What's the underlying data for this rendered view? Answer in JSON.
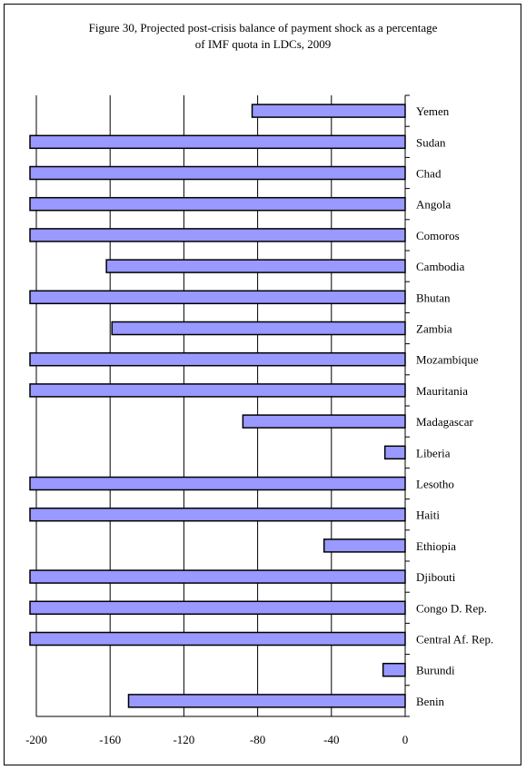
{
  "colors": {
    "bar_fill": "#9999ff",
    "bar_stroke": "#000000",
    "grid": "#000000",
    "background": "#ffffff"
  },
  "chart_data": {
    "type": "bar",
    "orientation": "horizontal",
    "title": "Figure 30,  Projected post-crisis balance of payment shock as a percentage of IMF quota in LDCs, 2009",
    "title_lines": [
      "Figure 30,  Projected post-crisis balance of payment shock as a percentage",
      "of IMF quota in LDCs, 2009"
    ],
    "xlabel": "",
    "ylabel": "",
    "xlim": [
      -200,
      0
    ],
    "x_ticks": [
      -200,
      -160,
      -120,
      -80,
      -40,
      0
    ],
    "x_tick_labels": [
      "-200",
      "-160",
      "-120",
      "-80",
      "-40",
      "0"
    ],
    "grid": "vertical",
    "legend": "none",
    "bars_clipped_at_axis_min": true,
    "categories": [
      "Yemen",
      "Sudan",
      "Chad",
      "Angola",
      "Comoros",
      "Cambodia",
      "Bhutan",
      "Zambia",
      "Mozambique",
      "Mauritania",
      "Madagascar",
      "Liberia",
      "Lesotho",
      "Haiti",
      "Ethiopia",
      "Djibouti",
      "Congo D. Rep.",
      "Central Af. Rep.",
      "Burundi",
      "Benin"
    ],
    "values": [
      -83,
      -202,
      -202,
      -202,
      -202,
      -162,
      -202,
      -159,
      -202,
      -202,
      -88,
      -11,
      -202,
      -202,
      -44,
      -202,
      -202,
      -202,
      -12,
      -150
    ]
  }
}
